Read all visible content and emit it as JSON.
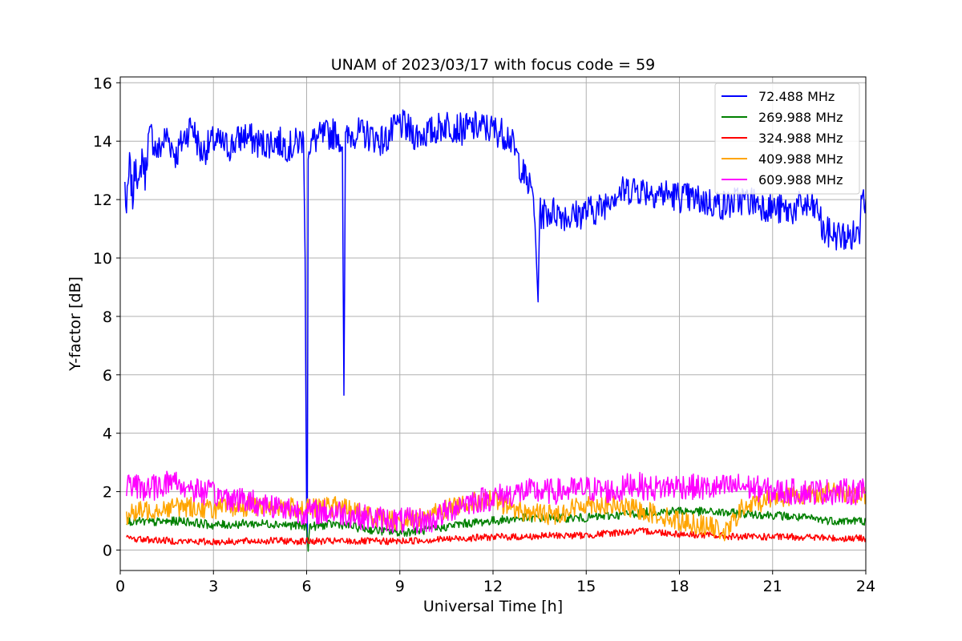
{
  "chart_data": {
    "type": "line",
    "title": "UNAM of 2023/03/17 with focus code = 59",
    "xlabel": "Universal Time [h]",
    "ylabel": "Y-factor [dB]",
    "xlim": [
      0,
      24
    ],
    "ylim": [
      -0.7,
      16.2
    ],
    "xticks": [
      0,
      3,
      6,
      9,
      12,
      15,
      18,
      21,
      24
    ],
    "yticks": [
      0,
      2,
      4,
      6,
      8,
      10,
      12,
      14,
      16
    ],
    "grid": true,
    "legend_position": "top-right",
    "series": [
      {
        "name": "  72.488 MHz",
        "color": "#0000ff",
        "points": [
          [
            0.15,
            12.5
          ],
          [
            0.2,
            11.5
          ],
          [
            0.3,
            13.2
          ],
          [
            0.4,
            12.0
          ],
          [
            0.5,
            13.5
          ],
          [
            0.6,
            12.2
          ],
          [
            0.7,
            13.6
          ],
          [
            0.8,
            12.8
          ],
          [
            0.9,
            14.0
          ],
          [
            1.0,
            14.2
          ],
          [
            1.2,
            13.6
          ],
          [
            1.5,
            14.2
          ],
          [
            1.8,
            13.5
          ],
          [
            2.0,
            14.0
          ],
          [
            2.3,
            14.6
          ],
          [
            2.6,
            13.6
          ],
          [
            3.0,
            14.0
          ],
          [
            3.5,
            13.8
          ],
          [
            4.0,
            14.2
          ],
          [
            4.5,
            13.9
          ],
          [
            5.0,
            14.0
          ],
          [
            5.5,
            13.8
          ],
          [
            5.9,
            14.1
          ],
          [
            5.95,
            10.0
          ],
          [
            6.0,
            1.0
          ],
          [
            6.02,
            0.5
          ],
          [
            6.05,
            13.8
          ],
          [
            6.2,
            14.0
          ],
          [
            6.6,
            14.2
          ],
          [
            7.0,
            14.3
          ],
          [
            7.15,
            13.8
          ],
          [
            7.2,
            5.3
          ],
          [
            7.25,
            14.0
          ],
          [
            7.5,
            14.3
          ],
          [
            8.0,
            14.2
          ],
          [
            8.5,
            14.0
          ],
          [
            9.0,
            14.6
          ],
          [
            9.5,
            14.2
          ],
          [
            10.0,
            14.3
          ],
          [
            10.5,
            14.6
          ],
          [
            11.0,
            14.4
          ],
          [
            11.5,
            14.5
          ],
          [
            12.0,
            14.4
          ],
          [
            12.5,
            14.2
          ],
          [
            12.8,
            13.4
          ],
          [
            13.0,
            12.8
          ],
          [
            13.3,
            12.2
          ],
          [
            13.35,
            11.2
          ],
          [
            13.45,
            8.5
          ],
          [
            13.5,
            11.5
          ],
          [
            14.0,
            11.6
          ],
          [
            14.5,
            11.4
          ],
          [
            15.0,
            11.6
          ],
          [
            15.5,
            11.7
          ],
          [
            15.8,
            12.2
          ],
          [
            16.0,
            12.2
          ],
          [
            16.5,
            12.4
          ],
          [
            17.0,
            12.3
          ],
          [
            17.5,
            12.2
          ],
          [
            18.0,
            12.1
          ],
          [
            18.5,
            12.0
          ],
          [
            19.0,
            11.9
          ],
          [
            19.5,
            11.8
          ],
          [
            20.0,
            12.0
          ],
          [
            20.5,
            11.9
          ],
          [
            21.0,
            11.7
          ],
          [
            21.5,
            11.6
          ],
          [
            22.0,
            11.8
          ],
          [
            22.5,
            11.6
          ],
          [
            22.6,
            10.9
          ],
          [
            23.0,
            10.8
          ],
          [
            23.5,
            10.7
          ],
          [
            23.8,
            10.9
          ],
          [
            23.85,
            12.5
          ],
          [
            24.0,
            12.0
          ]
        ]
      },
      {
        "name": "269.988 MHz",
        "color": "#008000",
        "points": [
          [
            0.2,
            1.0
          ],
          [
            1.0,
            0.95
          ],
          [
            2.0,
            1.0
          ],
          [
            3.0,
            0.85
          ],
          [
            4.0,
            0.9
          ],
          [
            5.0,
            0.9
          ],
          [
            6.0,
            0.8
          ],
          [
            6.05,
            0.1
          ],
          [
            6.1,
            0.8
          ],
          [
            7.0,
            0.9
          ],
          [
            8.0,
            0.7
          ],
          [
            9.0,
            0.6
          ],
          [
            10.0,
            0.7
          ],
          [
            11.0,
            0.9
          ],
          [
            12.0,
            1.0
          ],
          [
            13.0,
            1.1
          ],
          [
            14.0,
            1.1
          ],
          [
            15.0,
            1.1
          ],
          [
            16.0,
            1.2
          ],
          [
            17.0,
            1.3
          ],
          [
            18.0,
            1.35
          ],
          [
            19.0,
            1.3
          ],
          [
            20.0,
            1.25
          ],
          [
            21.0,
            1.2
          ],
          [
            22.0,
            1.1
          ],
          [
            23.0,
            1.0
          ],
          [
            24.0,
            1.0
          ]
        ]
      },
      {
        "name": "324.988 MHz",
        "color": "#ff0000",
        "points": [
          [
            0.2,
            0.4
          ],
          [
            1.0,
            0.35
          ],
          [
            2.0,
            0.3
          ],
          [
            3.0,
            0.28
          ],
          [
            4.0,
            0.3
          ],
          [
            5.0,
            0.32
          ],
          [
            6.0,
            0.3
          ],
          [
            7.0,
            0.3
          ],
          [
            8.0,
            0.3
          ],
          [
            9.0,
            0.3
          ],
          [
            10.0,
            0.35
          ],
          [
            11.0,
            0.4
          ],
          [
            12.0,
            0.45
          ],
          [
            13.0,
            0.45
          ],
          [
            14.0,
            0.5
          ],
          [
            15.0,
            0.5
          ],
          [
            16.0,
            0.6
          ],
          [
            17.0,
            0.65
          ],
          [
            18.0,
            0.55
          ],
          [
            19.0,
            0.5
          ],
          [
            20.0,
            0.45
          ],
          [
            21.0,
            0.45
          ],
          [
            22.0,
            0.45
          ],
          [
            23.0,
            0.4
          ],
          [
            24.0,
            0.4
          ]
        ]
      },
      {
        "name": "409.988 MHz",
        "color": "#ffa500",
        "points": [
          [
            0.2,
            1.2
          ],
          [
            1.0,
            1.4
          ],
          [
            2.0,
            1.5
          ],
          [
            3.0,
            1.4
          ],
          [
            4.0,
            1.5
          ],
          [
            5.0,
            1.5
          ],
          [
            6.0,
            1.4
          ],
          [
            7.0,
            1.5
          ],
          [
            8.0,
            1.2
          ],
          [
            9.0,
            1.0
          ],
          [
            10.0,
            1.2
          ],
          [
            11.0,
            1.6
          ],
          [
            12.0,
            1.7
          ],
          [
            13.0,
            1.3
          ],
          [
            14.0,
            1.2
          ],
          [
            15.0,
            1.6
          ],
          [
            16.0,
            1.5
          ],
          [
            17.0,
            1.3
          ],
          [
            18.0,
            1.0
          ],
          [
            19.0,
            0.8
          ],
          [
            19.5,
            0.6
          ],
          [
            20.0,
            1.4
          ],
          [
            21.0,
            1.8
          ],
          [
            22.0,
            1.9
          ],
          [
            23.0,
            2.0
          ],
          [
            24.0,
            1.9
          ]
        ]
      },
      {
        "name": "609.988 MHz",
        "color": "#ff00ff",
        "points": [
          [
            0.2,
            2.2
          ],
          [
            1.0,
            2.1
          ],
          [
            1.7,
            2.4
          ],
          [
            2.0,
            2.2
          ],
          [
            3.0,
            1.9
          ],
          [
            4.0,
            1.7
          ],
          [
            5.0,
            1.5
          ],
          [
            6.0,
            1.3
          ],
          [
            7.0,
            1.3
          ],
          [
            8.0,
            1.1
          ],
          [
            9.0,
            1.0
          ],
          [
            10.0,
            1.0
          ],
          [
            11.0,
            1.6
          ],
          [
            12.0,
            1.8
          ],
          [
            13.0,
            2.0
          ],
          [
            14.0,
            2.0
          ],
          [
            15.0,
            2.1
          ],
          [
            16.0,
            2.0
          ],
          [
            16.5,
            2.3
          ],
          [
            17.0,
            2.1
          ],
          [
            18.0,
            2.2
          ],
          [
            19.0,
            2.1
          ],
          [
            20.0,
            2.2
          ],
          [
            21.0,
            2.0
          ],
          [
            22.0,
            2.0
          ],
          [
            23.0,
            2.0
          ],
          [
            24.0,
            2.0
          ]
        ]
      }
    ]
  }
}
